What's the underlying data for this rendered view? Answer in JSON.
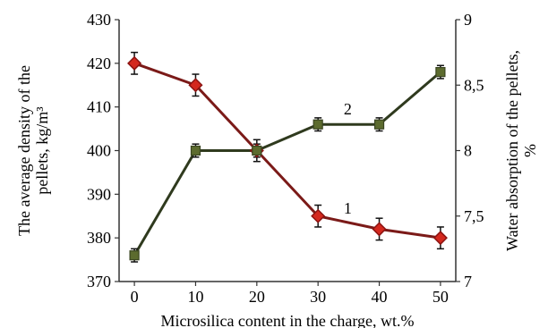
{
  "chart_data": {
    "type": "line",
    "xlabel": "Microsilica content in the charge, wt.%",
    "ylabel_left_lines": [
      "The average density of the",
      "pellets, kg/m³"
    ],
    "ylabel_right_lines": [
      "Water absorption of the pellets,",
      "%"
    ],
    "x": [
      0,
      10,
      20,
      30,
      40,
      50
    ],
    "x_ticks": [
      "0",
      "10",
      "20",
      "30",
      "40",
      "50"
    ],
    "y_left_ticks": [
      "370",
      "380",
      "390",
      "400",
      "410",
      "420",
      "430"
    ],
    "y_right_ticks": [
      "7",
      "7,5",
      "8",
      "8,5",
      "9"
    ],
    "xlim": [
      -2.5,
      52.5
    ],
    "ylim_left": [
      370,
      430
    ],
    "ylim_right": [
      7,
      9
    ],
    "grid": false,
    "series": [
      {
        "label": "1",
        "axis": "left",
        "values": [
          420,
          415,
          400,
          385,
          382,
          380
        ],
        "error": [
          2.5,
          2.5,
          2.5,
          2.5,
          2.5,
          2.5
        ],
        "line_color": "#7B1A18",
        "marker": "diamond",
        "marker_fill": "#D4281E",
        "marker_stroke": "#8B1210"
      },
      {
        "label": "2",
        "axis": "right",
        "values": [
          7.2,
          8.0,
          8.0,
          8.2,
          8.2,
          8.6
        ],
        "error": [
          0.05,
          0.05,
          0.05,
          0.05,
          0.05,
          0.05
        ],
        "line_color": "#2F3A1E",
        "marker": "square",
        "marker_fill": "#5C6B2E",
        "marker_stroke": "#3A4520"
      }
    ]
  }
}
